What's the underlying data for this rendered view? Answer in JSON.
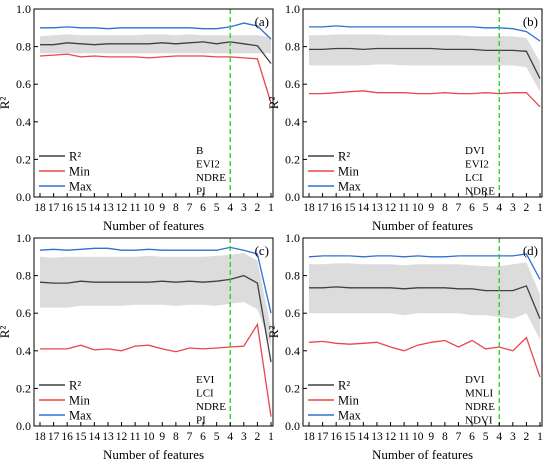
{
  "legend_labels": {
    "r2": "R²",
    "min": "Min",
    "max": "Max"
  },
  "colors": {
    "r2": "#404040",
    "min": "#e8474b",
    "max": "#2f6fd6",
    "band": "#dcdcdc",
    "marker": "#22cc22"
  },
  "chart_data": [
    {
      "type": "line",
      "panel_label": "(a)",
      "xlabel": "Number of features",
      "ylabel": "R²",
      "ylim": [
        0.0,
        1.0
      ],
      "yticks": [
        "0.0",
        "0.2",
        "0.4",
        "0.6",
        "0.8",
        "1.0"
      ],
      "x": [
        18,
        17,
        16,
        15,
        14,
        13,
        12,
        11,
        10,
        9,
        8,
        7,
        6,
        5,
        4,
        3,
        2,
        1
      ],
      "vline_x": 4,
      "features": [
        "B",
        "EVI2",
        "NDRE",
        "PI"
      ],
      "series": [
        {
          "name": "R²",
          "key": "r2",
          "values": [
            0.81,
            0.81,
            0.82,
            0.815,
            0.81,
            0.815,
            0.815,
            0.815,
            0.815,
            0.82,
            0.815,
            0.82,
            0.825,
            0.815,
            0.825,
            0.815,
            0.805,
            0.71
          ]
        },
        {
          "name": "Min",
          "key": "min",
          "values": [
            0.75,
            0.755,
            0.76,
            0.745,
            0.75,
            0.745,
            0.745,
            0.745,
            0.74,
            0.745,
            0.75,
            0.75,
            0.75,
            0.745,
            0.745,
            0.74,
            0.735,
            0.5
          ]
        },
        {
          "name": "Max",
          "key": "max",
          "values": [
            0.9,
            0.9,
            0.905,
            0.9,
            0.9,
            0.895,
            0.9,
            0.9,
            0.9,
            0.9,
            0.9,
            0.9,
            0.895,
            0.895,
            0.905,
            0.925,
            0.91,
            0.84
          ]
        }
      ],
      "band": {
        "lower": [
          0.765,
          0.765,
          0.765,
          0.765,
          0.765,
          0.765,
          0.765,
          0.765,
          0.765,
          0.765,
          0.765,
          0.765,
          0.765,
          0.765,
          0.765,
          0.765,
          0.765,
          0.765
        ],
        "upper": [
          0.855,
          0.86,
          0.865,
          0.86,
          0.86,
          0.86,
          0.86,
          0.86,
          0.865,
          0.865,
          0.86,
          0.865,
          0.86,
          0.86,
          0.86,
          0.86,
          0.86,
          0.85
        ]
      }
    },
    {
      "type": "line",
      "panel_label": "(b)",
      "xlabel": "Number of features",
      "ylabel": "R²",
      "ylim": [
        0.0,
        1.0
      ],
      "yticks": [
        "0.0",
        "0.2",
        "0.4",
        "0.6",
        "0.8",
        "1.0"
      ],
      "x": [
        18,
        17,
        16,
        15,
        14,
        13,
        12,
        11,
        10,
        9,
        8,
        7,
        6,
        5,
        4,
        3,
        2,
        1
      ],
      "vline_x": 4,
      "features": [
        "DVI",
        "EVI2",
        "LCI",
        "NDRE"
      ],
      "series": [
        {
          "name": "R²",
          "key": "r2",
          "values": [
            0.785,
            0.785,
            0.79,
            0.79,
            0.785,
            0.79,
            0.79,
            0.79,
            0.79,
            0.79,
            0.785,
            0.785,
            0.785,
            0.78,
            0.78,
            0.78,
            0.775,
            0.63
          ]
        },
        {
          "name": "Min",
          "key": "min",
          "values": [
            0.55,
            0.55,
            0.555,
            0.56,
            0.565,
            0.555,
            0.555,
            0.555,
            0.55,
            0.55,
            0.555,
            0.55,
            0.55,
            0.555,
            0.55,
            0.555,
            0.555,
            0.48
          ]
        },
        {
          "name": "Max",
          "key": "max",
          "values": [
            0.905,
            0.905,
            0.91,
            0.905,
            0.905,
            0.905,
            0.905,
            0.905,
            0.905,
            0.905,
            0.905,
            0.905,
            0.905,
            0.9,
            0.9,
            0.895,
            0.88,
            0.83
          ]
        }
      ],
      "band": {
        "lower": [
          0.7,
          0.7,
          0.7,
          0.7,
          0.7,
          0.705,
          0.705,
          0.7,
          0.7,
          0.7,
          0.7,
          0.7,
          0.7,
          0.7,
          0.7,
          0.7,
          0.69,
          0.56
        ],
        "upper": [
          0.86,
          0.86,
          0.865,
          0.865,
          0.865,
          0.865,
          0.86,
          0.86,
          0.86,
          0.86,
          0.86,
          0.86,
          0.855,
          0.855,
          0.855,
          0.855,
          0.845,
          0.72
        ]
      }
    },
    {
      "type": "line",
      "panel_label": "(c)",
      "xlabel": "Number of features",
      "ylabel": "R²",
      "ylim": [
        0.0,
        1.0
      ],
      "yticks": [
        "0.0",
        "0.2",
        "0.4",
        "0.6",
        "0.8",
        "1.0"
      ],
      "x": [
        18,
        17,
        16,
        15,
        14,
        13,
        12,
        11,
        10,
        9,
        8,
        7,
        6,
        5,
        4,
        3,
        2,
        1
      ],
      "vline_x": 4,
      "features": [
        "EVI",
        "LCI",
        "NDRE",
        "PI"
      ],
      "series": [
        {
          "name": "R²",
          "key": "r2",
          "values": [
            0.765,
            0.76,
            0.76,
            0.77,
            0.765,
            0.765,
            0.765,
            0.765,
            0.765,
            0.77,
            0.765,
            0.77,
            0.765,
            0.77,
            0.78,
            0.8,
            0.76,
            0.34
          ]
        },
        {
          "name": "Min",
          "key": "min",
          "values": [
            0.41,
            0.41,
            0.41,
            0.43,
            0.405,
            0.41,
            0.4,
            0.425,
            0.43,
            0.41,
            0.395,
            0.415,
            0.41,
            0.415,
            0.42,
            0.425,
            0.54,
            0.05
          ]
        },
        {
          "name": "Max",
          "key": "max",
          "values": [
            0.935,
            0.94,
            0.935,
            0.94,
            0.945,
            0.945,
            0.935,
            0.935,
            0.94,
            0.935,
            0.935,
            0.935,
            0.935,
            0.935,
            0.95,
            0.935,
            0.915,
            0.6
          ]
        }
      ],
      "band": {
        "lower": [
          0.63,
          0.63,
          0.63,
          0.64,
          0.64,
          0.64,
          0.64,
          0.645,
          0.645,
          0.645,
          0.64,
          0.645,
          0.645,
          0.64,
          0.65,
          0.66,
          0.62,
          0.42
        ]
      },
      "band_upper_note": "",
      "band_upper": [
        0.9,
        0.895,
        0.9,
        0.9,
        0.9,
        0.9,
        0.9,
        0.9,
        0.905,
        0.9,
        0.9,
        0.9,
        0.9,
        0.905,
        0.91,
        0.92,
        0.88,
        0.52
      ]
    },
    {
      "type": "line",
      "panel_label": "(d)",
      "xlabel": "Number of features",
      "ylabel": "R²",
      "ylim": [
        0.0,
        1.0
      ],
      "yticks": [
        "0.0",
        "0.2",
        "0.4",
        "0.6",
        "0.8",
        "1.0"
      ],
      "x": [
        18,
        17,
        16,
        15,
        14,
        13,
        12,
        11,
        10,
        9,
        8,
        7,
        6,
        5,
        4,
        3,
        2,
        1
      ],
      "vline_x": 4,
      "features": [
        "DVI",
        "MNLI",
        "NDRE",
        "NDVI"
      ],
      "series": [
        {
          "name": "R²",
          "key": "r2",
          "values": [
            0.735,
            0.735,
            0.74,
            0.735,
            0.735,
            0.735,
            0.735,
            0.73,
            0.735,
            0.735,
            0.735,
            0.73,
            0.73,
            0.72,
            0.72,
            0.72,
            0.745,
            0.57
          ]
        },
        {
          "name": "Min",
          "key": "min",
          "values": [
            0.445,
            0.45,
            0.44,
            0.435,
            0.44,
            0.445,
            0.42,
            0.4,
            0.43,
            0.445,
            0.455,
            0.42,
            0.455,
            0.41,
            0.42,
            0.4,
            0.47,
            0.26
          ]
        },
        {
          "name": "Max",
          "key": "max",
          "values": [
            0.9,
            0.905,
            0.905,
            0.905,
            0.9,
            0.905,
            0.905,
            0.9,
            0.905,
            0.9,
            0.9,
            0.905,
            0.905,
            0.905,
            0.905,
            0.905,
            0.915,
            0.78
          ]
        }
      ],
      "band": {
        "lower": [
          0.6,
          0.6,
          0.6,
          0.6,
          0.6,
          0.6,
          0.6,
          0.59,
          0.6,
          0.6,
          0.6,
          0.6,
          0.59,
          0.59,
          0.58,
          0.57,
          0.6,
          0.46
        ]
      },
      "band_upper": [
        0.86,
        0.86,
        0.865,
        0.865,
        0.86,
        0.86,
        0.86,
        0.855,
        0.86,
        0.86,
        0.86,
        0.86,
        0.855,
        0.85,
        0.85,
        0.86,
        0.87,
        0.7
      ]
    }
  ]
}
